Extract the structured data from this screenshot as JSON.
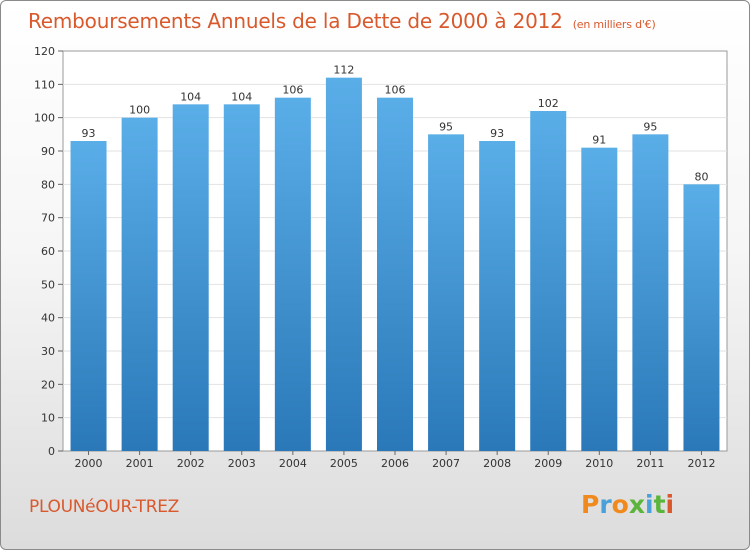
{
  "title": "Remboursements Annuels de la Dette de 2000 à 2012",
  "subtitle": "(en milliers d'€)",
  "town": "PLOUNéOUR-TREZ",
  "logo": {
    "letters": [
      "P",
      "r",
      "o",
      "x",
      "i",
      "t",
      "i"
    ],
    "colors": [
      "#f08a1c",
      "#4aa0d8",
      "#f08a1c",
      "#5bb53c",
      "#4aa0d8",
      "#5bb53c",
      "#d9592d"
    ]
  },
  "colors": {
    "bar_light": "#5aaee8",
    "bar_dark": "#2a78b8",
    "title": "#d9592d"
  },
  "chart_data": {
    "type": "bar",
    "categories": [
      "2000",
      "2001",
      "2002",
      "2003",
      "2004",
      "2005",
      "2006",
      "2007",
      "2008",
      "2009",
      "2010",
      "2011",
      "2012"
    ],
    "values": [
      93,
      100,
      104,
      104,
      106,
      112,
      106,
      95,
      93,
      102,
      91,
      95,
      80
    ],
    "xlabel": "",
    "ylabel": "",
    "ylim": [
      0,
      120
    ],
    "yticks": [
      0,
      10,
      20,
      30,
      40,
      50,
      60,
      70,
      80,
      90,
      100,
      110,
      120
    ],
    "grid": true,
    "legend": "none"
  }
}
